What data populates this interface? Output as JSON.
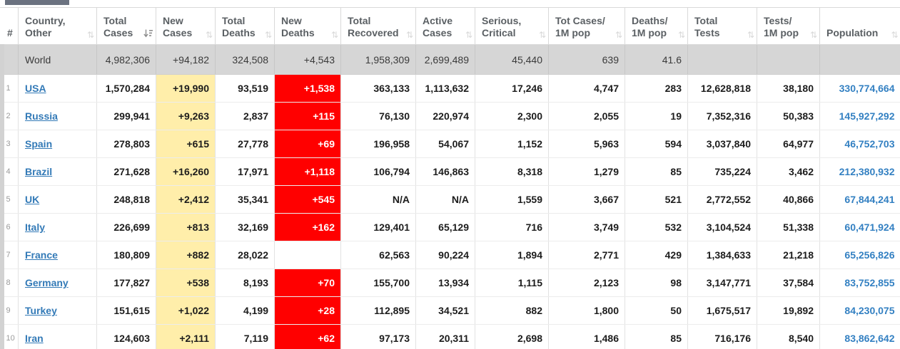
{
  "colors": {
    "highlight_yellow": "#ffeeaa",
    "highlight_red": "#ff0000",
    "link_blue": "#337ab7",
    "population_blue": "#3380c2",
    "world_row_bg": "#d6d6d6",
    "tab_slate": "#6b7280"
  },
  "table": {
    "columns": [
      {
        "id": "rank",
        "label_lines": [
          "#"
        ],
        "sort": null,
        "width": 25
      },
      {
        "id": "country",
        "label_lines": [
          "Country,",
          "Other"
        ],
        "sort": "none",
        "width": 110
      },
      {
        "id": "total_cases",
        "label_lines": [
          "Total",
          "Cases"
        ],
        "sort": "desc",
        "width": 83
      },
      {
        "id": "new_cases",
        "label_lines": [
          "New",
          "Cases"
        ],
        "sort": "none",
        "width": 83
      },
      {
        "id": "total_deaths",
        "label_lines": [
          "Total",
          "Deaths"
        ],
        "sort": "none",
        "width": 83
      },
      {
        "id": "new_deaths",
        "label_lines": [
          "New",
          "Deaths"
        ],
        "sort": "none",
        "width": 93
      },
      {
        "id": "total_recovered",
        "label_lines": [
          "Total",
          "Recovered"
        ],
        "sort": "none",
        "width": 105
      },
      {
        "id": "active_cases",
        "label_lines": [
          "Active",
          "Cases"
        ],
        "sort": "none",
        "width": 83
      },
      {
        "id": "serious_critical",
        "label_lines": [
          "Serious,",
          "Critical"
        ],
        "sort": "none",
        "width": 103
      },
      {
        "id": "cases_per_1m",
        "label_lines": [
          "Tot Cases/",
          "1M pop"
        ],
        "sort": "none",
        "width": 107
      },
      {
        "id": "deaths_per_1m",
        "label_lines": [
          "Deaths/",
          "1M pop"
        ],
        "sort": "none",
        "width": 88
      },
      {
        "id": "total_tests",
        "label_lines": [
          "Total",
          "Tests"
        ],
        "sort": "none",
        "width": 97
      },
      {
        "id": "tests_per_1m",
        "label_lines": [
          "Tests/",
          "1M pop"
        ],
        "sort": "none",
        "width": 88
      },
      {
        "id": "population",
        "label_lines": [
          "Population"
        ],
        "sort": "none",
        "width": 113
      }
    ],
    "rows": [
      {
        "world": true,
        "rank": "",
        "country": "World",
        "total_cases": "4,982,306",
        "new_cases": "+94,182",
        "total_deaths": "324,508",
        "new_deaths": "+4,543",
        "total_recovered": "1,958,309",
        "active_cases": "2,699,489",
        "serious_critical": "45,440",
        "cases_per_1m": "639",
        "deaths_per_1m": "41.6",
        "total_tests": "",
        "tests_per_1m": "",
        "population": ""
      },
      {
        "world": false,
        "rank": "1",
        "country": "USA",
        "total_cases": "1,570,284",
        "new_cases": "+19,990",
        "total_deaths": "93,519",
        "new_deaths": "+1,538",
        "total_recovered": "363,133",
        "active_cases": "1,113,632",
        "serious_critical": "17,246",
        "cases_per_1m": "4,747",
        "deaths_per_1m": "283",
        "total_tests": "12,628,818",
        "tests_per_1m": "38,180",
        "population": "330,774,664"
      },
      {
        "world": false,
        "rank": "2",
        "country": "Russia",
        "total_cases": "299,941",
        "new_cases": "+9,263",
        "total_deaths": "2,837",
        "new_deaths": "+115",
        "total_recovered": "76,130",
        "active_cases": "220,974",
        "serious_critical": "2,300",
        "cases_per_1m": "2,055",
        "deaths_per_1m": "19",
        "total_tests": "7,352,316",
        "tests_per_1m": "50,383",
        "population": "145,927,292"
      },
      {
        "world": false,
        "rank": "3",
        "country": "Spain",
        "total_cases": "278,803",
        "new_cases": "+615",
        "total_deaths": "27,778",
        "new_deaths": "+69",
        "total_recovered": "196,958",
        "active_cases": "54,067",
        "serious_critical": "1,152",
        "cases_per_1m": "5,963",
        "deaths_per_1m": "594",
        "total_tests": "3,037,840",
        "tests_per_1m": "64,977",
        "population": "46,752,703"
      },
      {
        "world": false,
        "rank": "4",
        "country": "Brazil",
        "total_cases": "271,628",
        "new_cases": "+16,260",
        "total_deaths": "17,971",
        "new_deaths": "+1,118",
        "total_recovered": "106,794",
        "active_cases": "146,863",
        "serious_critical": "8,318",
        "cases_per_1m": "1,279",
        "deaths_per_1m": "85",
        "total_tests": "735,224",
        "tests_per_1m": "3,462",
        "population": "212,380,932"
      },
      {
        "world": false,
        "rank": "5",
        "country": "UK",
        "total_cases": "248,818",
        "new_cases": "+2,412",
        "total_deaths": "35,341",
        "new_deaths": "+545",
        "total_recovered": "N/A",
        "active_cases": "N/A",
        "serious_critical": "1,559",
        "cases_per_1m": "3,667",
        "deaths_per_1m": "521",
        "total_tests": "2,772,552",
        "tests_per_1m": "40,866",
        "population": "67,844,241"
      },
      {
        "world": false,
        "rank": "6",
        "country": "Italy",
        "total_cases": "226,699",
        "new_cases": "+813",
        "total_deaths": "32,169",
        "new_deaths": "+162",
        "total_recovered": "129,401",
        "active_cases": "65,129",
        "serious_critical": "716",
        "cases_per_1m": "3,749",
        "deaths_per_1m": "532",
        "total_tests": "3,104,524",
        "tests_per_1m": "51,338",
        "population": "60,471,924"
      },
      {
        "world": false,
        "rank": "7",
        "country": "France",
        "total_cases": "180,809",
        "new_cases": "+882",
        "total_deaths": "28,022",
        "new_deaths": "",
        "total_recovered": "62,563",
        "active_cases": "90,224",
        "serious_critical": "1,894",
        "cases_per_1m": "2,771",
        "deaths_per_1m": "429",
        "total_tests": "1,384,633",
        "tests_per_1m": "21,218",
        "population": "65,256,826"
      },
      {
        "world": false,
        "rank": "8",
        "country": "Germany",
        "total_cases": "177,827",
        "new_cases": "+538",
        "total_deaths": "8,193",
        "new_deaths": "+70",
        "total_recovered": "155,700",
        "active_cases": "13,934",
        "serious_critical": "1,115",
        "cases_per_1m": "2,123",
        "deaths_per_1m": "98",
        "total_tests": "3,147,771",
        "tests_per_1m": "37,584",
        "population": "83,752,855"
      },
      {
        "world": false,
        "rank": "9",
        "country": "Turkey",
        "total_cases": "151,615",
        "new_cases": "+1,022",
        "total_deaths": "4,199",
        "new_deaths": "+28",
        "total_recovered": "112,895",
        "active_cases": "34,521",
        "serious_critical": "882",
        "cases_per_1m": "1,800",
        "deaths_per_1m": "50",
        "total_tests": "1,675,517",
        "tests_per_1m": "19,892",
        "population": "84,230,075"
      },
      {
        "world": false,
        "rank": "10",
        "country": "Iran",
        "total_cases": "124,603",
        "new_cases": "+2,111",
        "total_deaths": "7,119",
        "new_deaths": "+62",
        "total_recovered": "97,173",
        "active_cases": "20,311",
        "serious_critical": "2,698",
        "cases_per_1m": "1,486",
        "deaths_per_1m": "85",
        "total_tests": "716,176",
        "tests_per_1m": "8,540",
        "population": "83,862,642"
      }
    ],
    "icons": {
      "sort_toggle_glyph": "⇅"
    }
  }
}
